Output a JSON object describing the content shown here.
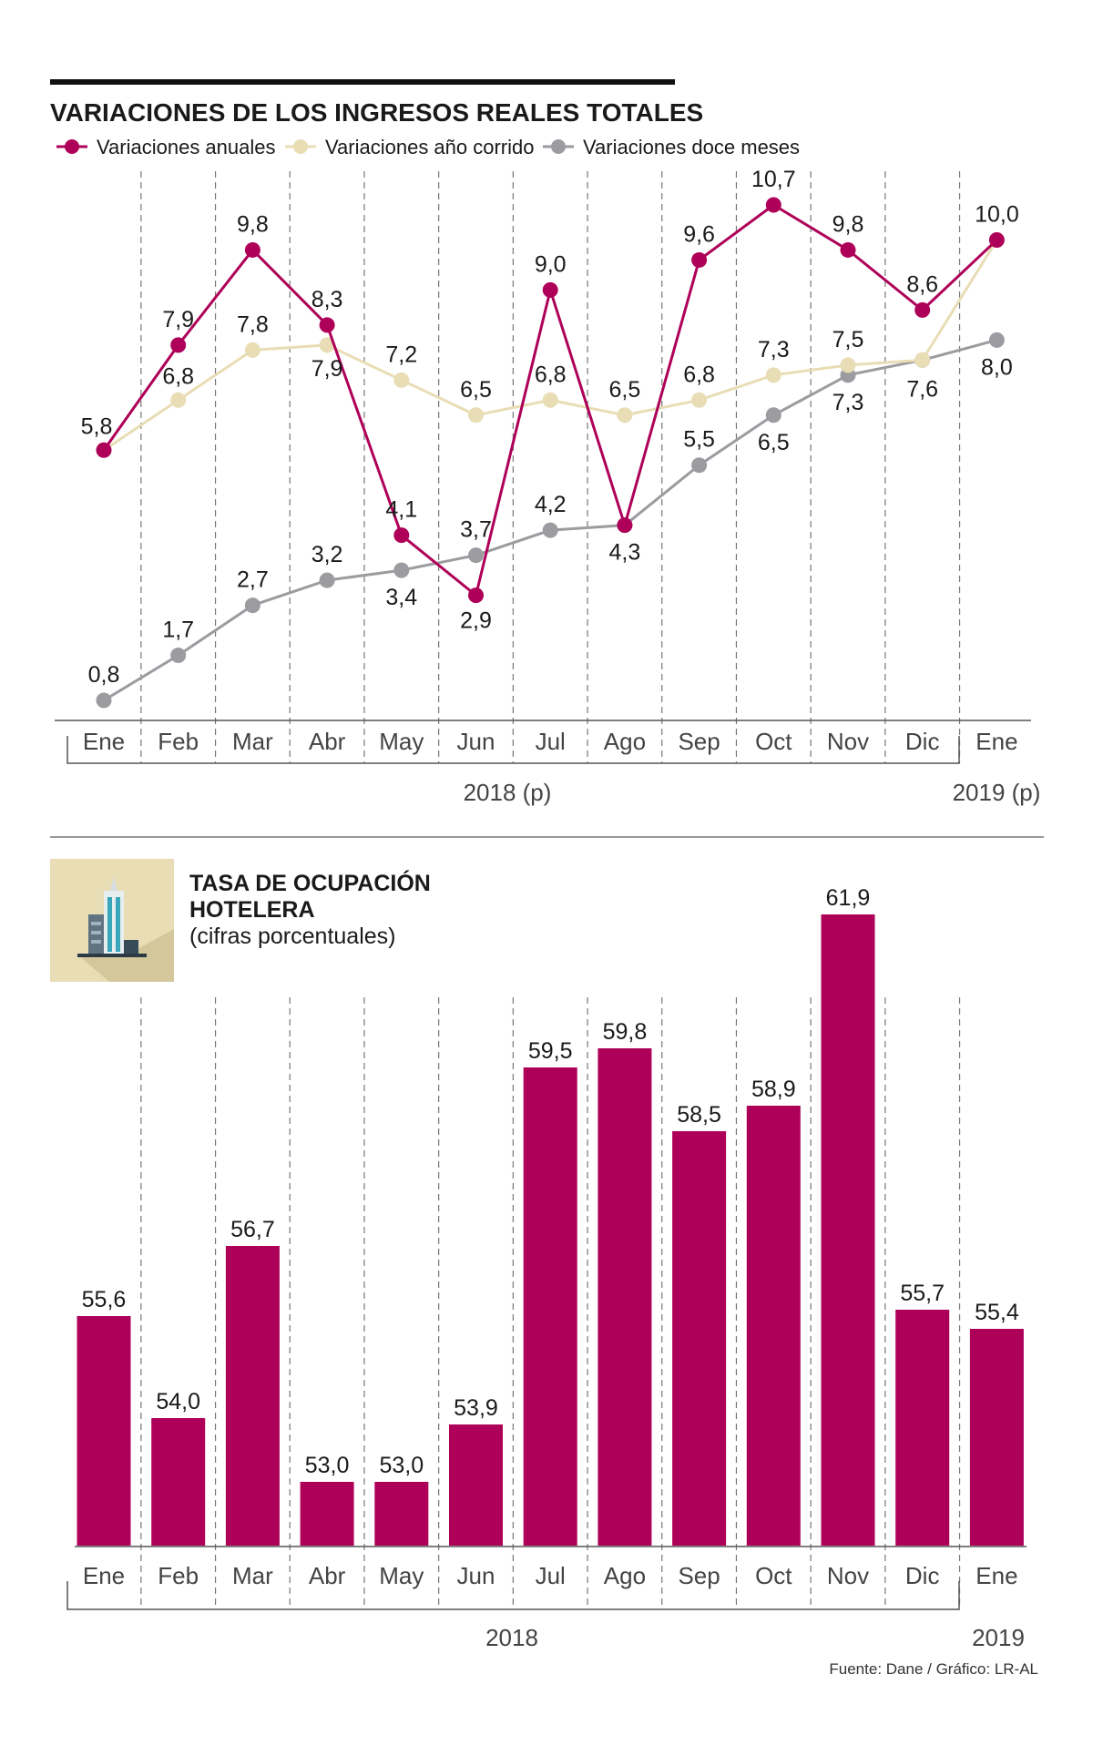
{
  "chart_data": [
    {
      "type": "line",
      "title": "VARIACIONES DE LOS INGRESOS REALES TOTALES",
      "categories": [
        "Ene",
        "Feb",
        "Mar",
        "Abr",
        "May",
        "Jun",
        "Jul",
        "Ago",
        "Sep",
        "Oct",
        "Nov",
        "Dic",
        "Ene"
      ],
      "series": [
        {
          "name": "Variaciones anuales",
          "color": "#ae0058",
          "values": [
            5.8,
            7.9,
            9.8,
            8.3,
            4.1,
            2.9,
            9.0,
            4.3,
            9.6,
            10.7,
            9.8,
            8.6,
            10.0
          ],
          "labels": [
            "5,8",
            "7,9",
            "9,8",
            "8,3",
            "4,1",
            "2,9",
            "9,0",
            "4,3",
            "9,6",
            "10,7",
            "9,8",
            "8,6",
            "10,0"
          ]
        },
        {
          "name": "Variaciones año corrido",
          "color": "#e8ddb5",
          "values": [
            5.8,
            6.8,
            7.8,
            7.9,
            7.2,
            6.5,
            6.8,
            6.5,
            6.8,
            7.3,
            7.5,
            7.6,
            10.0
          ],
          "labels": [
            "",
            "6,8",
            "7,8",
            "7,9",
            "7,2",
            "6,5",
            "6,8",
            "6,5",
            "6,8",
            "7,3",
            "7,5",
            "7,6",
            ""
          ]
        },
        {
          "name": "Variaciones doce meses",
          "color": "#9b9ba0",
          "values": [
            0.8,
            1.7,
            2.7,
            3.2,
            3.4,
            3.7,
            4.2,
            4.3,
            5.5,
            6.5,
            7.3,
            7.6,
            8.0
          ],
          "labels": [
            "0,8",
            "1,7",
            "2,7",
            "3,2",
            "3,4",
            "3,7",
            "4,2",
            "",
            "5,5",
            "6,5",
            "7,3",
            "",
            "8,0"
          ]
        }
      ],
      "year_groups": [
        "2018 (p)",
        "2019 (p)"
      ],
      "ylim": [
        0,
        11
      ],
      "legend": "top-left",
      "grid": "vertical-dashed"
    },
    {
      "type": "bar",
      "title": "TASA DE OCUPACIÓN",
      "title2": "HOTELERA",
      "subtitle": "(cifras porcentuales)",
      "categories": [
        "Ene",
        "Feb",
        "Mar",
        "Abr",
        "May",
        "Jun",
        "Jul",
        "Ago",
        "Sep",
        "Oct",
        "Nov",
        "Dic",
        "Ene"
      ],
      "values": [
        55.6,
        54.0,
        56.7,
        53.0,
        53.0,
        53.9,
        59.5,
        59.8,
        58.5,
        58.9,
        61.9,
        55.7,
        55.4
      ],
      "labels": [
        "55,6",
        "54,0",
        "56,7",
        "53,0",
        "53,0",
        "53,9",
        "59,5",
        "59,8",
        "58,5",
        "58,9",
        "61,9",
        "55,7",
        "55,4"
      ],
      "color": "#ae0058",
      "year_groups": [
        "2018",
        "2019"
      ],
      "ylim": [
        52,
        63
      ]
    }
  ],
  "footer": {
    "source": "Fuente: Dane / Gráfico: LR-AL"
  }
}
